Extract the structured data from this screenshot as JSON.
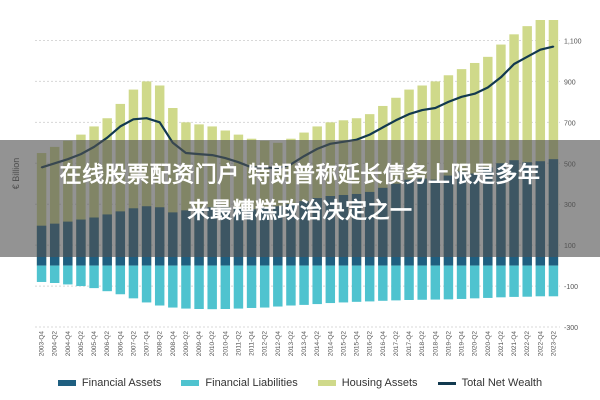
{
  "headline": {
    "line1": "在线股票配资门户 特朗普称延长债务上限是多年",
    "line2": "来最糟糕政治决定之一"
  },
  "chart_data": {
    "type": "bar",
    "ylabel": "€ Billion",
    "ylim": [
      -300,
      1200
    ],
    "yticks": [
      -300,
      -100,
      100,
      300,
      500,
      700,
      900,
      1100
    ],
    "ytick_labels": [
      "-300",
      "-100",
      "100",
      "300",
      "500",
      "700",
      "900",
      "1,100"
    ],
    "grid": true,
    "legend_position": "bottom",
    "categories": [
      "2003-Q4",
      "2004-Q2",
      "2004-Q4",
      "2005-Q2",
      "2005-Q4",
      "2006-Q2",
      "2006-Q4",
      "2007-Q2",
      "2007-Q4",
      "2008-Q2",
      "2008-Q4",
      "2009-Q2",
      "2009-Q4",
      "2010-Q2",
      "2010-Q4",
      "2011-Q2",
      "2011-Q4",
      "2012-Q2",
      "2012-Q4",
      "2013-Q2",
      "2013-Q4",
      "2014-Q2",
      "2014-Q4",
      "2015-Q2",
      "2015-Q4",
      "2016-Q2",
      "2016-Q4",
      "2017-Q2",
      "2017-Q4",
      "2018-Q2",
      "2018-Q4",
      "2019-Q2",
      "2019-Q4",
      "2020-Q2",
      "2020-Q4",
      "2021-Q2",
      "2021-Q4",
      "2022-Q2",
      "2022-Q4",
      "2023-Q2"
    ],
    "series": [
      {
        "name": "Financial Assets",
        "kind": "bar",
        "color": "#1f5f80",
        "values": [
          195,
          205,
          215,
          225,
          235,
          250,
          265,
          280,
          290,
          285,
          260,
          270,
          280,
          285,
          285,
          280,
          275,
          285,
          290,
          300,
          315,
          330,
          340,
          345,
          350,
          360,
          380,
          400,
          420,
          425,
          420,
          440,
          460,
          450,
          480,
          500,
          515,
          505,
          510,
          520
        ]
      },
      {
        "name": "Financial Liabilities",
        "kind": "bar",
        "color": "#4fc3cf",
        "values": [
          -80,
          -85,
          -92,
          -100,
          -110,
          -125,
          -140,
          -160,
          -180,
          -195,
          -205,
          -210,
          -212,
          -213,
          -212,
          -210,
          -207,
          -205,
          -200,
          -195,
          -192,
          -188,
          -183,
          -180,
          -177,
          -175,
          -172,
          -170,
          -168,
          -167,
          -166,
          -165,
          -163,
          -160,
          -158,
          -155,
          -153,
          -152,
          -150,
          -150
        ]
      },
      {
        "name": "Housing Assets",
        "kind": "bar",
        "color": "#cfd98a",
        "values": [
          550,
          580,
          610,
          640,
          680,
          720,
          790,
          860,
          900,
          880,
          770,
          700,
          690,
          680,
          660,
          640,
          620,
          610,
          600,
          620,
          650,
          680,
          700,
          710,
          720,
          740,
          780,
          820,
          860,
          880,
          900,
          930,
          960,
          990,
          1020,
          1080,
          1130,
          1170,
          1200,
          1200
        ]
      },
      {
        "name": "Total Net Wealth",
        "kind": "line",
        "color": "#12394f",
        "values": [
          480,
          500,
          520,
          545,
          580,
          625,
          680,
          715,
          720,
          700,
          600,
          550,
          545,
          540,
          525,
          505,
          480,
          480,
          475,
          495,
          535,
          570,
          595,
          605,
          615,
          640,
          675,
          710,
          740,
          760,
          770,
          800,
          825,
          840,
          870,
          920,
          985,
          1020,
          1055,
          1070
        ]
      }
    ]
  }
}
